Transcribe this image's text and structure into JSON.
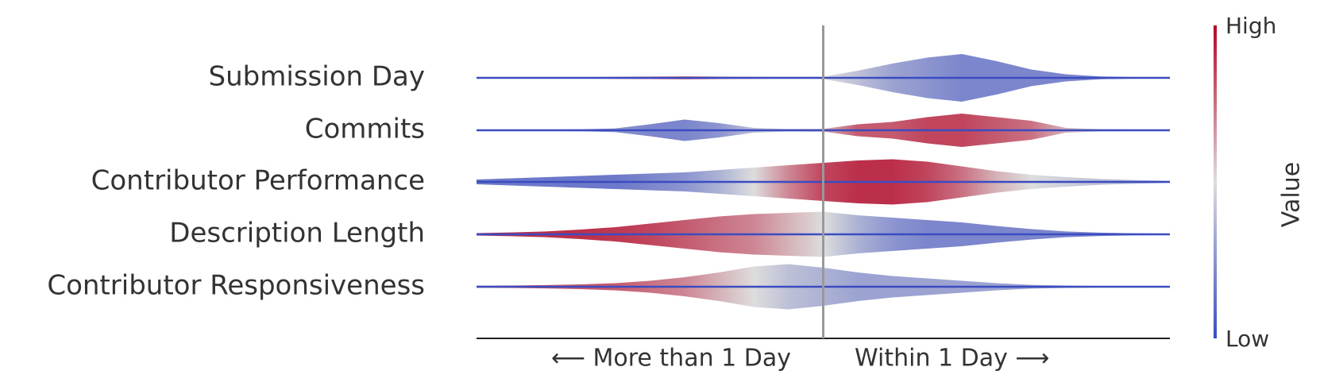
{
  "chart_data": {
    "type": "violin",
    "x": [
      -1,
      -0.9,
      -0.8,
      -0.7,
      -0.6,
      -0.5,
      -0.4,
      -0.3,
      -0.2,
      -0.1,
      0,
      0.1,
      0.2,
      0.3,
      0.4,
      0.5,
      0.6,
      0.7,
      0.8,
      0.9,
      1
    ],
    "xlim": [
      -1,
      1
    ],
    "x_left_label": "⟵ More than 1 Day",
    "x_right_label": "Within 1 Day ⟶",
    "series": [
      {
        "name": "Submission Day",
        "values": [
          0.03,
          0.03,
          0.03,
          0.03,
          0.04,
          0.05,
          0.06,
          0.05,
          0.04,
          0.04,
          0.05,
          0.3,
          0.6,
          0.85,
          1,
          0.7,
          0.35,
          0.15,
          0.06,
          0.03,
          0.02
        ],
        "color_values": [
          0.85,
          0.85,
          0.85,
          0.85,
          0.85,
          0.85,
          0.85,
          0.8,
          0.7,
          0.6,
          0.5,
          0.4,
          0.3,
          0.25,
          0.2,
          0.2,
          0.2,
          0.2,
          0.2,
          0.2,
          0.2
        ]
      },
      {
        "name": "Commits",
        "values": [
          0.03,
          0.03,
          0.03,
          0.04,
          0.08,
          0.25,
          0.45,
          0.3,
          0.1,
          0.06,
          0.06,
          0.25,
          0.35,
          0.55,
          0.7,
          0.55,
          0.4,
          0.1,
          0.05,
          0.03,
          0.02
        ],
        "color_values": [
          0.3,
          0.3,
          0.3,
          0.3,
          0.25,
          0.2,
          0.2,
          0.25,
          0.4,
          0.5,
          0.6,
          0.8,
          0.8,
          0.85,
          0.85,
          0.8,
          0.75,
          0.6,
          0.5,
          0.4,
          0.4
        ]
      },
      {
        "name": "Contributor Performance",
        "values": [
          0.1,
          0.15,
          0.2,
          0.25,
          0.3,
          0.35,
          0.4,
          0.5,
          0.6,
          0.7,
          0.8,
          0.9,
          0.95,
          0.85,
          0.65,
          0.45,
          0.3,
          0.2,
          0.12,
          0.08,
          0.04
        ],
        "color_values": [
          0.15,
          0.15,
          0.15,
          0.15,
          0.15,
          0.2,
          0.25,
          0.35,
          0.5,
          0.7,
          0.85,
          0.9,
          0.9,
          0.85,
          0.75,
          0.6,
          0.5,
          0.45,
          0.4,
          0.4,
          0.4
        ]
      },
      {
        "name": "Description Length",
        "values": [
          0.05,
          0.08,
          0.12,
          0.2,
          0.3,
          0.45,
          0.6,
          0.75,
          0.85,
          0.9,
          0.95,
          0.8,
          0.7,
          0.6,
          0.5,
          0.35,
          0.22,
          0.12,
          0.07,
          0.04,
          0.03
        ],
        "color_values": [
          0.9,
          0.9,
          0.9,
          0.9,
          0.88,
          0.85,
          0.8,
          0.75,
          0.7,
          0.6,
          0.5,
          0.35,
          0.25,
          0.2,
          0.2,
          0.2,
          0.2,
          0.2,
          0.2,
          0.2,
          0.2
        ]
      },
      {
        "name": "Contributor Responsiveness",
        "values": [
          0.04,
          0.05,
          0.07,
          0.1,
          0.15,
          0.25,
          0.4,
          0.6,
          0.85,
          0.95,
          0.8,
          0.6,
          0.45,
          0.35,
          0.25,
          0.15,
          0.08,
          0.05,
          0.03,
          0.02,
          0.02
        ],
        "color_values": [
          0.8,
          0.8,
          0.8,
          0.8,
          0.8,
          0.75,
          0.7,
          0.6,
          0.5,
          0.4,
          0.35,
          0.3,
          0.3,
          0.3,
          0.3,
          0.3,
          0.3,
          0.3,
          0.3,
          0.3,
          0.3
        ]
      }
    ],
    "colormap": [
      "#3b4cc0",
      "#dddddd",
      "#b40426"
    ],
    "colorbar": {
      "label": "Value",
      "high": "High",
      "low": "Low"
    }
  }
}
